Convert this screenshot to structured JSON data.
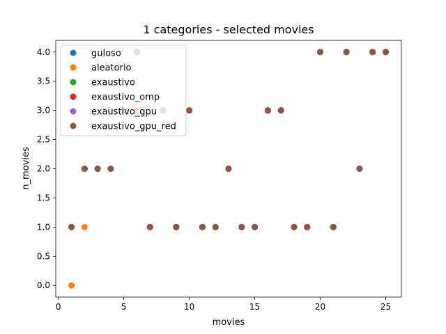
{
  "chart_data": {
    "type": "scatter",
    "title": "1 categories - selected movies",
    "xlabel": "movies",
    "ylabel": "n_movies",
    "xlim": [
      -0.2,
      26.2
    ],
    "ylim": [
      -0.2,
      4.2
    ],
    "xticks": [
      0,
      5,
      10,
      15,
      20,
      25
    ],
    "yticks": [
      0.0,
      0.5,
      1.0,
      1.5,
      2.0,
      2.5,
      3.0,
      3.5,
      4.0
    ],
    "xtick_labels": [
      "0",
      "5",
      "10",
      "15",
      "20",
      "25"
    ],
    "ytick_labels": [
      "0.0",
      "0.5",
      "1.0",
      "1.5",
      "2.0",
      "2.5",
      "3.0",
      "3.5",
      "4.0"
    ],
    "grid": false,
    "legend_position": "upper-left",
    "series": [
      {
        "name": "guloso",
        "color": "#1f77b4",
        "points": [
          [
            1,
            1
          ],
          [
            2,
            2
          ],
          [
            3,
            2
          ],
          [
            4,
            2
          ],
          [
            5,
            3
          ],
          [
            6,
            4
          ],
          [
            7,
            1
          ],
          [
            8,
            3
          ],
          [
            9,
            1
          ],
          [
            10,
            3
          ],
          [
            11,
            1
          ],
          [
            12,
            1
          ],
          [
            13,
            2
          ],
          [
            14,
            1
          ],
          [
            15,
            1
          ],
          [
            16,
            3
          ],
          [
            17,
            3
          ],
          [
            18,
            1
          ],
          [
            19,
            1
          ],
          [
            20,
            4
          ],
          [
            21,
            1
          ],
          [
            22,
            4
          ],
          [
            23,
            2
          ],
          [
            24,
            4
          ],
          [
            25,
            4
          ]
        ]
      },
      {
        "name": "aleatorio",
        "color": "#ff7f0e",
        "points": [
          [
            1,
            0
          ],
          [
            2,
            1
          ],
          [
            3,
            2
          ],
          [
            4,
            2
          ],
          [
            5,
            3
          ],
          [
            6,
            3
          ],
          [
            7,
            1
          ],
          [
            8,
            3
          ],
          [
            9,
            1
          ],
          [
            10,
            3
          ],
          [
            11,
            1
          ],
          [
            12,
            1
          ],
          [
            13,
            2
          ],
          [
            14,
            1
          ],
          [
            15,
            1
          ],
          [
            16,
            3
          ],
          [
            17,
            3
          ],
          [
            18,
            1
          ],
          [
            19,
            1
          ],
          [
            20,
            4
          ],
          [
            21,
            1
          ],
          [
            22,
            4
          ],
          [
            23,
            2
          ],
          [
            24,
            4
          ],
          [
            25,
            4
          ]
        ]
      },
      {
        "name": "exaustivo",
        "color": "#2ca02c",
        "points": [
          [
            1,
            1
          ],
          [
            2,
            2
          ],
          [
            3,
            2
          ],
          [
            4,
            2
          ],
          [
            5,
            3
          ],
          [
            6,
            4
          ],
          [
            7,
            1
          ],
          [
            8,
            3
          ],
          [
            9,
            1
          ],
          [
            10,
            3
          ],
          [
            11,
            1
          ],
          [
            12,
            1
          ],
          [
            13,
            2
          ],
          [
            14,
            1
          ],
          [
            15,
            1
          ],
          [
            16,
            3
          ],
          [
            17,
            3
          ],
          [
            18,
            1
          ],
          [
            19,
            1
          ],
          [
            20,
            4
          ],
          [
            21,
            1
          ],
          [
            22,
            4
          ],
          [
            23,
            2
          ],
          [
            24,
            4
          ],
          [
            25,
            4
          ]
        ]
      },
      {
        "name": "exaustivo_omp",
        "color": "#d62728",
        "points": [
          [
            1,
            1
          ],
          [
            2,
            2
          ],
          [
            3,
            2
          ],
          [
            4,
            2
          ],
          [
            5,
            3
          ],
          [
            6,
            4
          ],
          [
            7,
            1
          ],
          [
            8,
            3
          ],
          [
            9,
            1
          ],
          [
            10,
            3
          ],
          [
            11,
            1
          ],
          [
            12,
            1
          ],
          [
            13,
            2
          ],
          [
            14,
            1
          ],
          [
            15,
            1
          ],
          [
            16,
            3
          ],
          [
            17,
            3
          ],
          [
            18,
            1
          ],
          [
            19,
            1
          ],
          [
            20,
            4
          ],
          [
            21,
            1
          ],
          [
            22,
            4
          ],
          [
            23,
            2
          ],
          [
            24,
            4
          ],
          [
            25,
            4
          ]
        ]
      },
      {
        "name": "exaustivo_gpu",
        "color": "#9467bd",
        "points": [
          [
            1,
            1
          ],
          [
            2,
            2
          ],
          [
            3,
            2
          ],
          [
            4,
            2
          ],
          [
            5,
            3
          ],
          [
            6,
            4
          ],
          [
            7,
            1
          ],
          [
            8,
            3
          ],
          [
            9,
            1
          ],
          [
            10,
            3
          ],
          [
            11,
            1
          ],
          [
            12,
            1
          ],
          [
            13,
            2
          ],
          [
            14,
            1
          ],
          [
            15,
            1
          ],
          [
            16,
            3
          ],
          [
            17,
            3
          ],
          [
            18,
            1
          ],
          [
            19,
            1
          ],
          [
            20,
            4
          ],
          [
            21,
            1
          ],
          [
            22,
            4
          ],
          [
            23,
            2
          ],
          [
            24,
            4
          ],
          [
            25,
            4
          ]
        ]
      },
      {
        "name": "exaustivo_gpu_red",
        "color": "#8c564b",
        "points": [
          [
            1,
            1
          ],
          [
            2,
            2
          ],
          [
            3,
            2
          ],
          [
            4,
            2
          ],
          [
            5,
            3
          ],
          [
            6,
            4
          ],
          [
            7,
            1
          ],
          [
            8,
            3
          ],
          [
            9,
            1
          ],
          [
            10,
            3
          ],
          [
            11,
            1
          ],
          [
            12,
            1
          ],
          [
            13,
            2
          ],
          [
            14,
            1
          ],
          [
            15,
            1
          ],
          [
            16,
            3
          ],
          [
            17,
            3
          ],
          [
            18,
            1
          ],
          [
            19,
            1
          ],
          [
            20,
            4
          ],
          [
            21,
            1
          ],
          [
            22,
            4
          ],
          [
            23,
            2
          ],
          [
            24,
            4
          ],
          [
            25,
            4
          ]
        ]
      }
    ]
  }
}
